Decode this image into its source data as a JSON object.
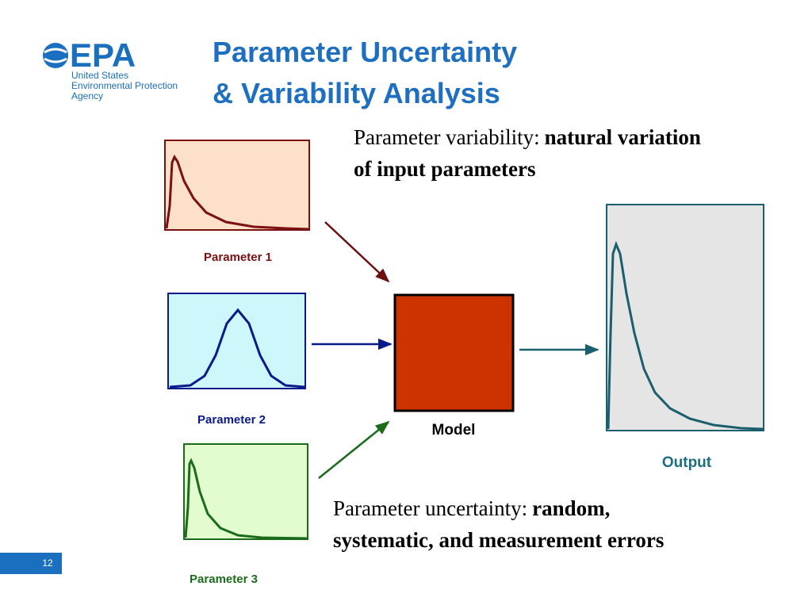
{
  "logo": {
    "mark": "EPA",
    "lines": [
      "United States",
      "Environmental Protection",
      "Agency"
    ]
  },
  "title": {
    "lines": [
      "Parameter Uncertainty",
      "& Variability Analysis"
    ]
  },
  "variability": {
    "label": "Parameter variability:",
    "emphasis": "natural variation of input parameters"
  },
  "uncertainty": {
    "label": "Parameter uncertainty:",
    "emphasis": "random, systematic, and measurement errors"
  },
  "inputs": [
    {
      "label": "Parameter 1"
    },
    {
      "label": "Parameter 2"
    },
    {
      "label": "Parameter 3"
    }
  ],
  "model": {
    "label": "Model"
  },
  "output": {
    "label": "Output"
  },
  "page_number": 12
}
